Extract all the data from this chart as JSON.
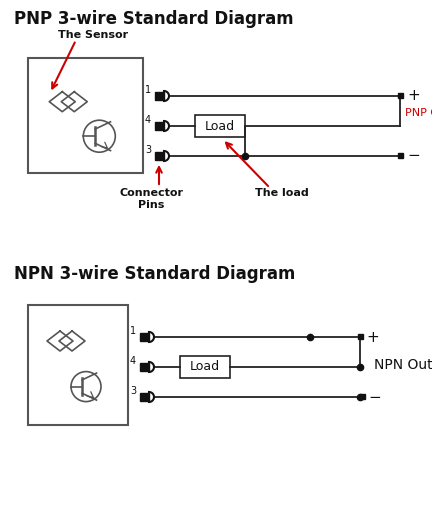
{
  "bg_color": "#ffffff",
  "title_pnp": "PNP 3-wire Standard Diagram",
  "title_npn": "NPN 3-wire Standard Diagram",
  "title_fontsize": 12,
  "small_fontsize": 8,
  "pin_fontsize": 7,
  "pnp_output_label": "PNP Output",
  "npn_output_label": "NPN Output",
  "sensor_label": "The Sensor",
  "load_label": "The load",
  "connector_label": "Connector\nPins",
  "red": "#cc0000",
  "black": "#111111",
  "line_color": "#222222",
  "box_color": "#555555"
}
